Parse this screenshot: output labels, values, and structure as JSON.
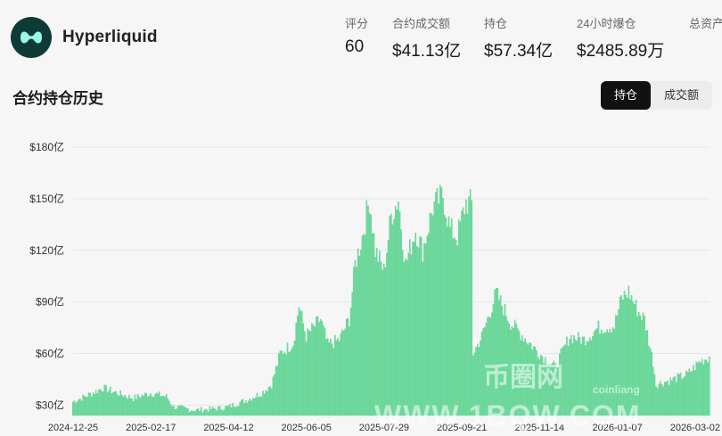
{
  "header": {
    "app_name": "Hyperliquid",
    "logo_icon": "hyperliquid-logo-icon",
    "stats": [
      {
        "label": "评分",
        "value": "60"
      },
      {
        "label": "合约成交额",
        "value": "$41.13亿"
      },
      {
        "label": "持仓",
        "value": "$57.34亿"
      },
      {
        "label": "24小时爆仓",
        "value": "$2485.89万"
      },
      {
        "label": "总资产",
        "value": ""
      }
    ]
  },
  "section": {
    "title": "合约持仓历史",
    "tabs": [
      {
        "label": "持仓",
        "active": true
      },
      {
        "label": "成交额",
        "active": false
      }
    ]
  },
  "watermark": {
    "cn": "币圈网",
    "coin": "coinliang",
    "url": "WWW.1BQW.COM"
  },
  "colors": {
    "bar": "#6fdc9c",
    "bar_edge": "#3fc47c",
    "active_tab_bg": "#111111"
  },
  "chart_data": {
    "type": "bar",
    "title": "",
    "xlabel": "",
    "ylabel": "",
    "y_ticks": [
      "$30亿",
      "$60亿",
      "$90亿",
      "$120亿",
      "$150亿",
      "$180亿"
    ],
    "y_tick_values": [
      30,
      60,
      90,
      120,
      150,
      180
    ],
    "ylim": [
      24,
      180
    ],
    "x_ticks": [
      "2024-12-25",
      "2025-02-17",
      "2025-04-12",
      "2025-06-05",
      "2025-07-29",
      "2025-09-21",
      "2025-11-14",
      "2026-01-07",
      "2026-03-02"
    ],
    "x_start": "2024-12-25",
    "x_end": "2026-03-12",
    "grid": true,
    "legend": "none",
    "series": [
      {
        "unit": "亿 USD",
        "anchors": [
          [
            "2024-12-25",
            32
          ],
          [
            "2025-01-05",
            36
          ],
          [
            "2025-01-15",
            40
          ],
          [
            "2025-01-25",
            37
          ],
          [
            "2025-02-05",
            34
          ],
          [
            "2025-02-17",
            37
          ],
          [
            "2025-02-28",
            35
          ],
          [
            "2025-03-05",
            29
          ],
          [
            "2025-03-20",
            27
          ],
          [
            "2025-04-05",
            28
          ],
          [
            "2025-04-12",
            29
          ],
          [
            "2025-04-25",
            33
          ],
          [
            "2025-05-05",
            37
          ],
          [
            "2025-05-12",
            42
          ],
          [
            "2025-05-18",
            60
          ],
          [
            "2025-05-27",
            66
          ],
          [
            "2025-05-31",
            88
          ],
          [
            "2025-06-05",
            70
          ],
          [
            "2025-06-15",
            80
          ],
          [
            "2025-06-20",
            65
          ],
          [
            "2025-06-28",
            68
          ],
          [
            "2025-07-05",
            80
          ],
          [
            "2025-07-09",
            112
          ],
          [
            "2025-07-14",
            128
          ],
          [
            "2025-07-19",
            150
          ],
          [
            "2025-07-23",
            120
          ],
          [
            "2025-07-29",
            108
          ],
          [
            "2025-08-03",
            140
          ],
          [
            "2025-08-08",
            150
          ],
          [
            "2025-08-13",
            112
          ],
          [
            "2025-08-20",
            132
          ],
          [
            "2025-08-25",
            120
          ],
          [
            "2025-09-01",
            145
          ],
          [
            "2025-09-08",
            152
          ],
          [
            "2025-09-13",
            132
          ],
          [
            "2025-09-18",
            128
          ],
          [
            "2025-09-24",
            148
          ],
          [
            "2025-09-28",
            147
          ],
          [
            "2025-09-29",
            60
          ],
          [
            "2025-10-05",
            70
          ],
          [
            "2025-10-15",
            95
          ],
          [
            "2025-10-25",
            78
          ],
          [
            "2025-11-05",
            68
          ],
          [
            "2025-11-14",
            60
          ],
          [
            "2025-11-25",
            52
          ],
          [
            "2025-12-05",
            70
          ],
          [
            "2025-12-15",
            68
          ],
          [
            "2025-12-25",
            75
          ],
          [
            "2026-01-05",
            76
          ],
          [
            "2026-01-10",
            92
          ],
          [
            "2026-01-15",
            96
          ],
          [
            "2026-01-22",
            84
          ],
          [
            "2026-01-26",
            80
          ],
          [
            "2026-02-01",
            55
          ],
          [
            "2026-02-03",
            42
          ],
          [
            "2026-02-15",
            45
          ],
          [
            "2026-02-25",
            48
          ],
          [
            "2026-03-05",
            55
          ],
          [
            "2026-03-12",
            58
          ]
        ]
      }
    ]
  }
}
